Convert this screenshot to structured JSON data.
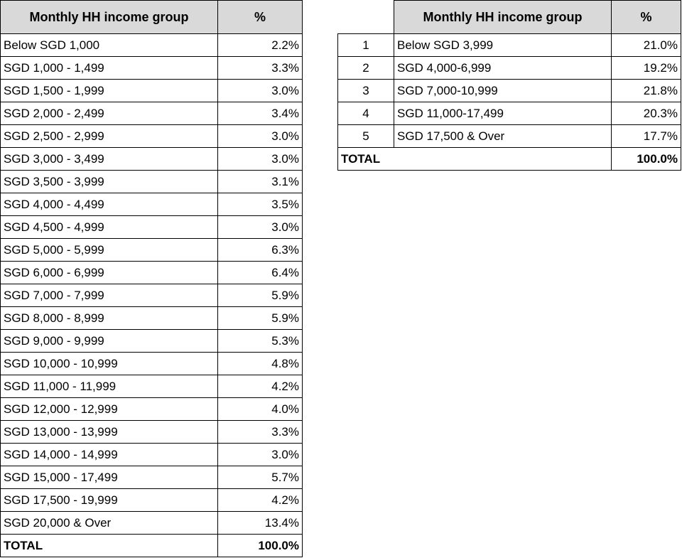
{
  "left_table": {
    "header": [
      "Monthly HH income group",
      "%"
    ],
    "rows": [
      [
        "Below SGD 1,000",
        "2.2%"
      ],
      [
        "SGD 1,000 - 1,499",
        "3.3%"
      ],
      [
        "SGD 1,500 - 1,999",
        "3.0%"
      ],
      [
        "SGD 2,000 - 2,499",
        "3.4%"
      ],
      [
        "SGD 2,500 - 2,999",
        "3.0%"
      ],
      [
        "SGD 3,000 - 3,499",
        "3.0%"
      ],
      [
        "SGD 3,500 - 3,999",
        "3.1%"
      ],
      [
        "SGD 4,000 - 4,499",
        "3.5%"
      ],
      [
        "SGD 4,500 - 4,999",
        "3.0%"
      ],
      [
        "SGD 5,000 - 5,999",
        "6.3%"
      ],
      [
        "SGD 6,000 - 6,999",
        "6.4%"
      ],
      [
        "SGD 7,000 - 7,999",
        "5.9%"
      ],
      [
        "SGD 8,000 - 8,999",
        "5.9%"
      ],
      [
        "SGD 9,000 - 9,999",
        "5.3%"
      ],
      [
        "SGD 10,000 - 10,999",
        "4.8%"
      ],
      [
        "SGD 11,000 - 11,999",
        "4.2%"
      ],
      [
        "SGD 12,000 - 12,999",
        "4.0%"
      ],
      [
        "SGD 13,000 - 13,999",
        "3.3%"
      ],
      [
        "SGD 14,000 - 14,999",
        "3.0%"
      ],
      [
        "SGD 15,000 - 17,499",
        "5.7%"
      ],
      [
        "SGD 17,500 - 19,999",
        "4.2%"
      ],
      [
        "SGD 20,000 & Over",
        "13.4%"
      ]
    ],
    "total": [
      "TOTAL",
      "100.0%"
    ]
  },
  "right_table": {
    "header": [
      "Monthly HH income group",
      "%"
    ],
    "rows": [
      [
        "1",
        "Below SGD 3,999",
        "21.0%"
      ],
      [
        "2",
        "SGD 4,000-6,999",
        "19.2%"
      ],
      [
        "3",
        "SGD 7,000-10,999",
        "21.8%"
      ],
      [
        "4",
        "SGD 11,000-17,499",
        "20.3%"
      ],
      [
        "5",
        "SGD 17,500 & Over",
        "17.7%"
      ]
    ],
    "total": [
      "TOTAL",
      "100.0%"
    ]
  }
}
